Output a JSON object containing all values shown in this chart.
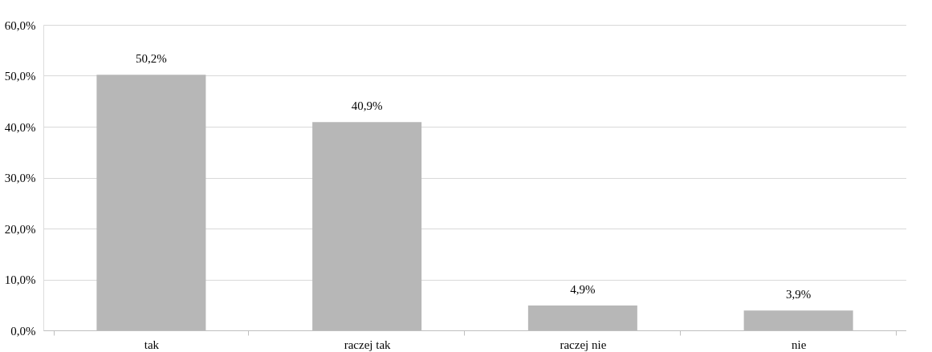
{
  "chart_data": {
    "type": "bar",
    "categories": [
      "tak",
      "raczej tak",
      "raczej nie",
      "nie"
    ],
    "values": [
      50.2,
      40.9,
      4.9,
      3.9
    ],
    "value_labels": [
      "50,2%",
      "40,9%",
      "4,9%",
      "3,9%"
    ],
    "color": "#b7b7b7",
    "ylim": [
      0,
      60
    ],
    "yticks": [
      {
        "value": 0,
        "label": "0,0%"
      },
      {
        "value": 10,
        "label": "10,0%"
      },
      {
        "value": 20,
        "label": "20,0%"
      },
      {
        "value": 30,
        "label": "30,0%"
      },
      {
        "value": 40,
        "label": "40,0%"
      },
      {
        "value": 50,
        "label": "50,0%"
      },
      {
        "value": 60,
        "label": "60,0%"
      }
    ],
    "grid": "y"
  }
}
